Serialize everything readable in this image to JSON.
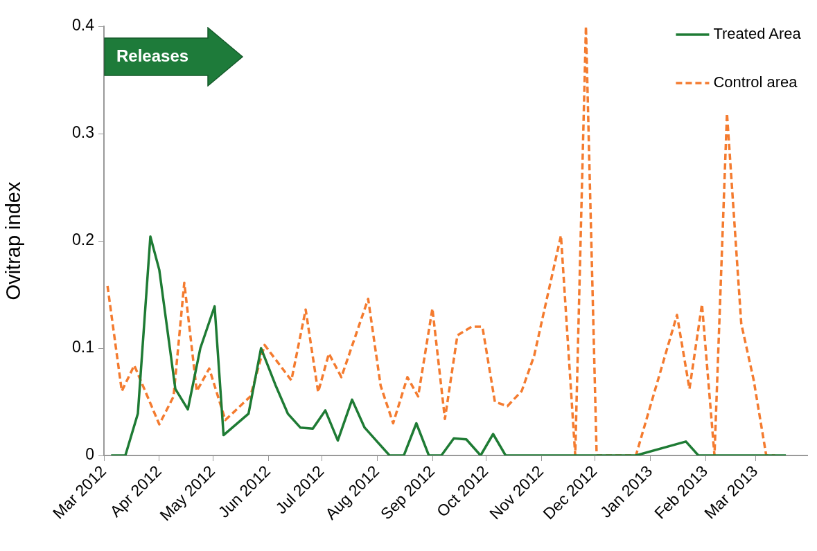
{
  "chart_data": {
    "type": "line",
    "ylabel": "Ovitrap index",
    "annotations": [
      "Releases"
    ],
    "xlim": [
      "2012-03-01",
      "2013-03-30"
    ],
    "xticks": [
      {
        "value": "2012-03-01",
        "label": "Mar 2012"
      },
      {
        "value": "2012-04-01",
        "label": "Apr 2012"
      },
      {
        "value": "2012-05-01",
        "label": "May 2012"
      },
      {
        "value": "2012-06-01",
        "label": "Jun 2012"
      },
      {
        "value": "2012-07-01",
        "label": "Jul 2012"
      },
      {
        "value": "2012-08-01",
        "label": "Aug 2012"
      },
      {
        "value": "2012-09-01",
        "label": "Sep 2012"
      },
      {
        "value": "2012-10-01",
        "label": "Oct 2012"
      },
      {
        "value": "2012-11-01",
        "label": "Nov 2012"
      },
      {
        "value": "2012-12-01",
        "label": "Dec 2012"
      },
      {
        "value": "2013-01-01",
        "label": "Jan 2013"
      },
      {
        "value": "2013-02-01",
        "label": "Feb 2013"
      },
      {
        "value": "2013-03-01",
        "label": "Mar 2013"
      }
    ],
    "ylim": [
      0,
      0.4
    ],
    "yticks": [
      0,
      0.1,
      0.2,
      0.3,
      0.4
    ],
    "grid": false,
    "legend": "top right",
    "marker": "none",
    "series": [
      {
        "name": "Treated Area",
        "color": "#1e7b34",
        "line_style": "solid",
        "x": [
          "2012-03-05",
          "2012-03-13",
          "2012-03-20",
          "2012-03-27",
          "2012-04-01",
          "2012-04-10",
          "2012-04-17",
          "2012-04-24",
          "2012-05-02",
          "2012-05-07",
          "2012-05-21",
          "2012-05-28",
          "2012-06-05",
          "2012-06-12",
          "2012-06-19",
          "2012-06-26",
          "2012-07-03",
          "2012-07-10",
          "2012-07-18",
          "2012-07-25",
          "2012-08-01",
          "2012-08-08",
          "2012-08-16",
          "2012-08-23",
          "2012-08-30",
          "2012-09-06",
          "2012-09-13",
          "2012-09-20",
          "2012-09-28",
          "2012-10-05",
          "2012-10-12",
          "2012-10-19",
          "2012-10-26",
          "2012-11-02",
          "2012-11-09",
          "2012-11-16",
          "2012-11-23",
          "2012-11-30",
          "2012-12-07",
          "2012-12-14",
          "2012-12-24",
          "2013-01-21",
          "2013-01-28",
          "2013-02-04",
          "2013-02-11",
          "2013-02-18",
          "2013-02-25",
          "2013-03-04",
          "2013-03-11",
          "2013-03-18"
        ],
        "values": [
          0,
          0,
          0.039,
          0.204,
          0.173,
          0.062,
          0.043,
          0.1,
          0.139,
          0.019,
          0.039,
          0.1,
          0.066,
          0.039,
          0.026,
          0.025,
          0.042,
          0.014,
          0.052,
          0.026,
          0.013,
          0,
          0,
          0.03,
          0,
          0,
          0.016,
          0.015,
          0,
          0.02,
          0,
          0,
          0,
          0,
          0,
          0,
          0,
          0,
          0,
          0,
          0,
          0.013,
          0,
          0,
          0,
          0,
          0,
          0,
          0,
          0
        ]
      },
      {
        "name": "Control area",
        "color": "#f47b2f",
        "line_style": "dashed",
        "x": [
          "2012-03-03",
          "2012-03-11",
          "2012-03-18",
          "2012-04-01",
          "2012-04-09",
          "2012-04-15",
          "2012-04-22",
          "2012-04-29",
          "2012-05-08",
          "2012-05-22",
          "2012-05-30",
          "2012-06-14",
          "2012-06-22",
          "2012-06-29",
          "2012-07-05",
          "2012-07-12",
          "2012-07-27",
          "2012-08-03",
          "2012-08-10",
          "2012-08-18",
          "2012-08-24",
          "2012-09-01",
          "2012-09-08",
          "2012-09-15",
          "2012-09-23",
          "2012-09-29",
          "2012-10-06",
          "2012-10-13",
          "2012-10-21",
          "2012-10-28",
          "2012-11-12",
          "2012-11-20",
          "2012-11-26",
          "2012-12-02",
          "2012-12-09",
          "2012-12-16",
          "2012-12-24",
          "2013-01-16",
          "2013-01-23",
          "2013-01-30",
          "2013-02-06",
          "2013-02-13",
          "2013-02-21",
          "2013-02-28",
          "2013-03-07",
          "2013-03-12"
        ],
        "values": [
          0.158,
          0.06,
          0.084,
          0.029,
          0.055,
          0.161,
          0.06,
          0.081,
          0.033,
          0.055,
          0.103,
          0.07,
          0.136,
          0.059,
          0.095,
          0.073,
          0.146,
          0.065,
          0.03,
          0.073,
          0.055,
          0.137,
          0.034,
          0.112,
          0.12,
          0.12,
          0.05,
          0.046,
          0.06,
          0.093,
          0.205,
          0,
          0.4,
          0,
          0,
          0,
          0,
          0.131,
          0.062,
          0.141,
          0,
          0.319,
          0.123,
          0.07,
          0,
          0
        ]
      }
    ]
  }
}
